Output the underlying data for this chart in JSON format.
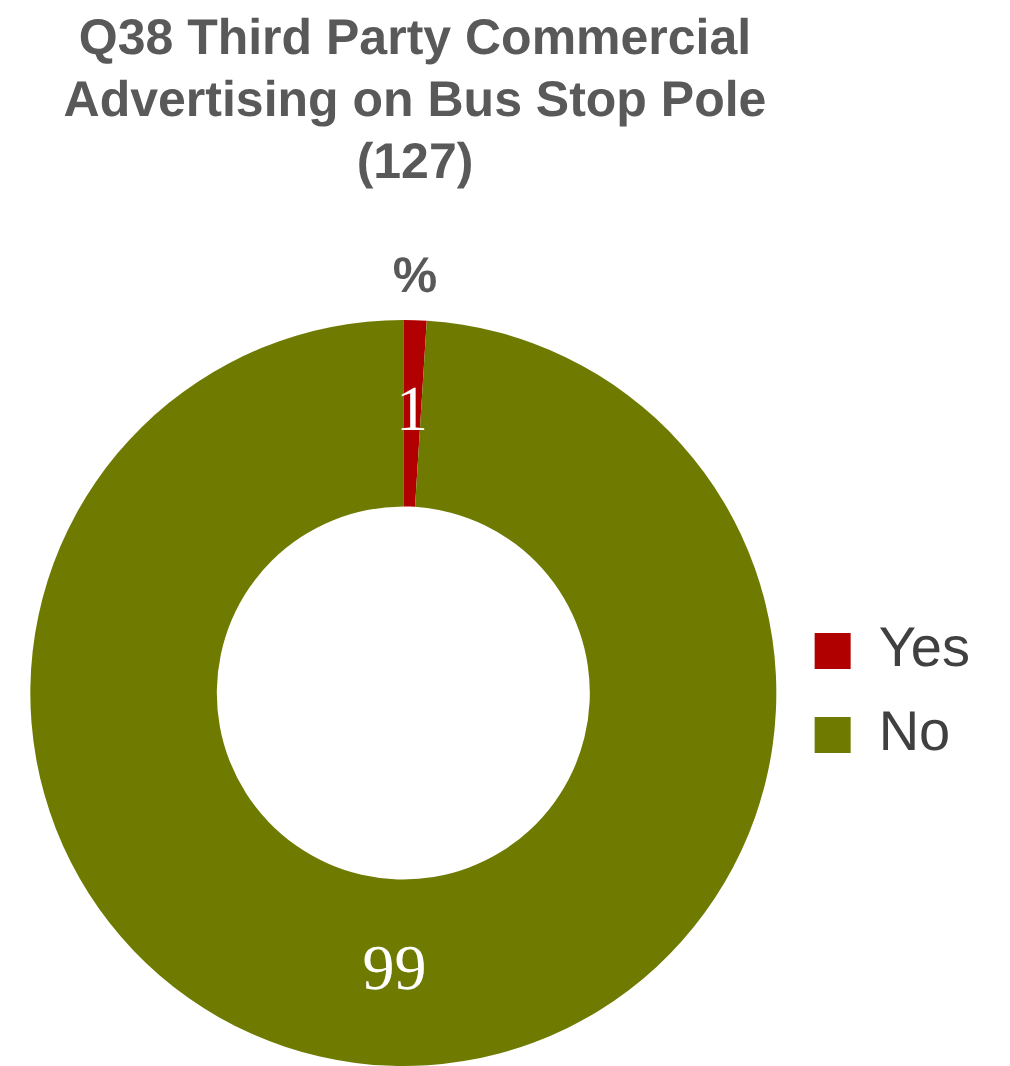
{
  "chart_data": {
    "type": "donut",
    "title": "Q38 Third Party Commercial Advertising on Bus Stop Pole (127)",
    "subtitle": "%",
    "categories": [
      "Yes",
      "No"
    ],
    "values": [
      1,
      99
    ],
    "colors": [
      "#b00000",
      "#6f7a00"
    ],
    "data_labels": true,
    "legend": "right"
  }
}
